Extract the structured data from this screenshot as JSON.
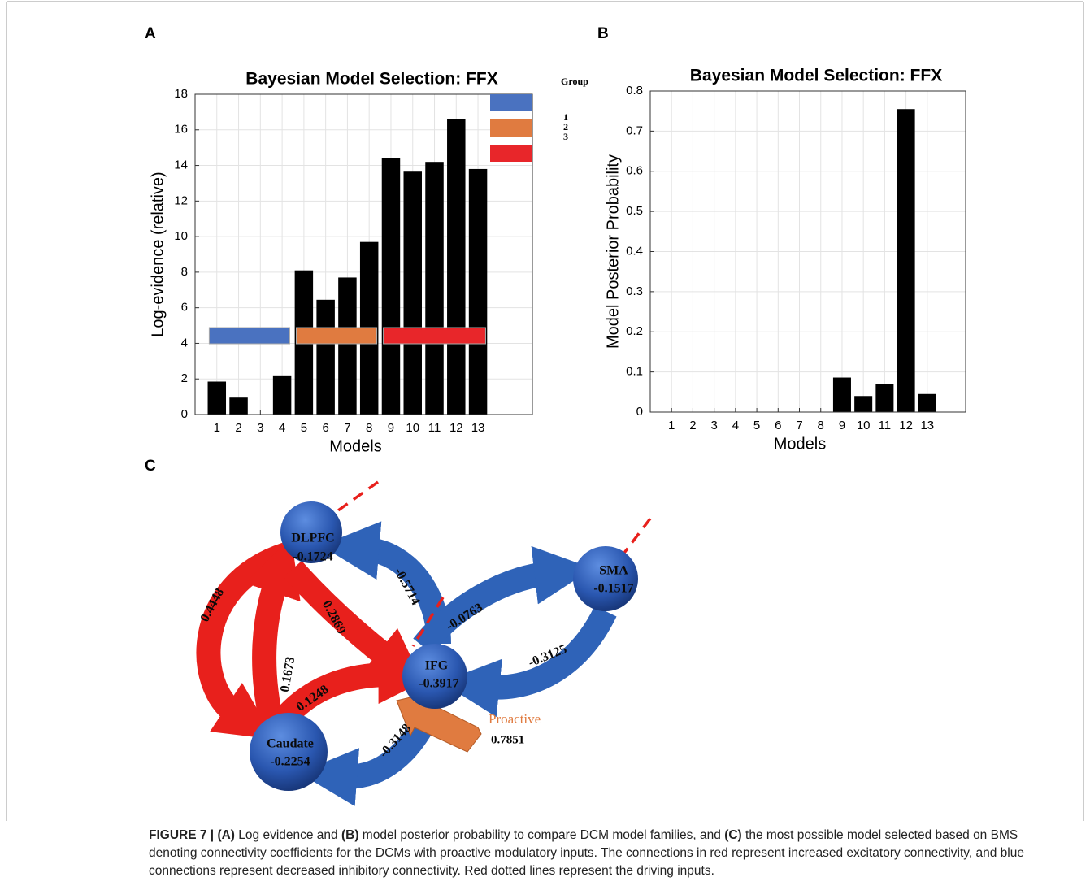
{
  "panels": [
    "A",
    "B",
    "C"
  ],
  "chart_data": [
    {
      "type": "bar",
      "title": "Bayesian Model Selection: FFX",
      "x_label": "Models",
      "y_label": "Log-evidence (relative)",
      "x": [
        1,
        2,
        3,
        4,
        5,
        6,
        7,
        8,
        9,
        10,
        11,
        12,
        13
      ],
      "values": [
        1.85,
        0.95,
        0,
        2.2,
        8.1,
        6.45,
        7.7,
        9.7,
        14.4,
        13.65,
        14.2,
        16.6,
        13.8
      ],
      "color": "#000000",
      "xlim": [
        0,
        15.5
      ],
      "xticks": [
        1,
        2,
        3,
        4,
        5,
        6,
        7,
        8,
        9,
        10,
        11,
        12,
        13
      ],
      "ylim": [
        0,
        18
      ],
      "yticks": [
        0,
        2,
        4,
        6,
        8,
        10,
        12,
        14,
        16,
        18
      ],
      "grid": true,
      "legend_title": "Group",
      "groups": [
        {
          "name": "1",
          "color": "#4a72c0",
          "from": 1,
          "to": 4
        },
        {
          "name": "2",
          "color": "#e07b40",
          "from": 5,
          "to": 8
        },
        {
          "name": "3",
          "color": "#e8262a",
          "from": 9,
          "to": 13
        }
      ]
    },
    {
      "type": "bar",
      "title": "Bayesian Model Selection: FFX",
      "x_label": "Models",
      "y_label": "Model Posterior Probability",
      "x": [
        1,
        2,
        3,
        4,
        5,
        6,
        7,
        8,
        9,
        10,
        11,
        12,
        13
      ],
      "values": [
        0,
        0,
        0,
        0,
        0,
        0,
        0,
        0,
        0.086,
        0.04,
        0.07,
        0.755,
        0.045
      ],
      "color": "#000000",
      "xlim": [
        0,
        14.8
      ],
      "xticks": [
        1,
        2,
        3,
        4,
        5,
        6,
        7,
        8,
        9,
        10,
        11,
        12,
        13
      ],
      "ylim": [
        0,
        0.8
      ],
      "yticks": [
        0,
        0.1,
        0.2,
        0.3,
        0.4,
        0.5,
        0.6,
        0.7,
        0.8
      ],
      "grid": true
    }
  ],
  "diagram": {
    "nodes": [
      {
        "label": "DLPFC",
        "value": -0.1724
      },
      {
        "label": "SMA",
        "value": -0.1517
      },
      {
        "label": "IFG",
        "value": -0.3917
      },
      {
        "label": "Caudate",
        "value": -0.2254
      }
    ],
    "edges": [
      {
        "label": 0.4448
      },
      {
        "label": 0.1673
      },
      {
        "label": 0.2869
      },
      {
        "label": 0.1248
      },
      {
        "label": -0.5714
      },
      {
        "label": -0.0763
      },
      {
        "label": -0.3125
      },
      {
        "label": -0.3148
      }
    ],
    "input": {
      "label": "Proactive",
      "value": 0.7851
    }
  },
  "caption": {
    "parts": [
      "FIGURE 7 | ",
      "(A)",
      " Log evidence and ",
      "(B)",
      " model posterior probability to compare DCM model families, and ",
      "(C)",
      " the most possible model selected based on BMS denoting connectivity coefficients for the DCMs with proactive modulatory inputs. The connections in red represent increased excitatory connectivity, and blue connections represent decreased inhibitory connectivity. Red dotted lines represent the driving inputs."
    ]
  }
}
